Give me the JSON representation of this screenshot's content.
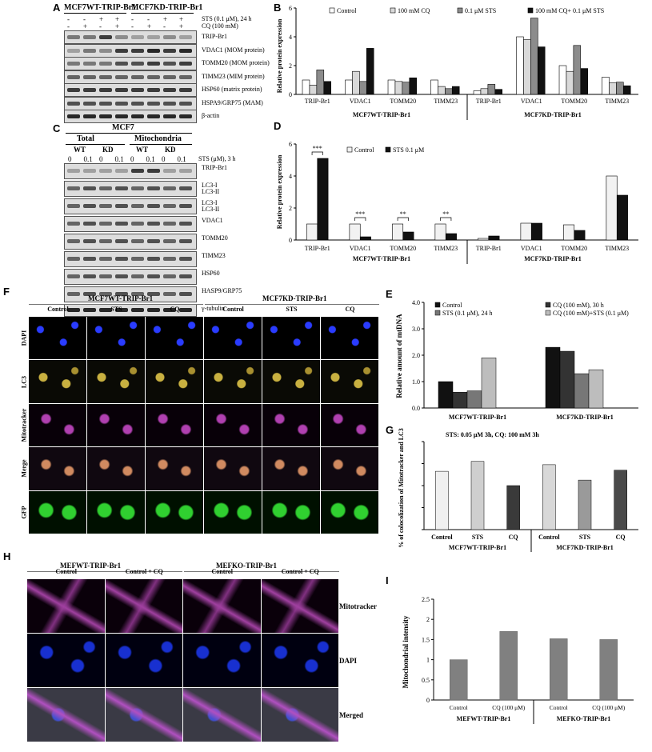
{
  "panel_letters": {
    "A": "A",
    "B": "B",
    "C": "C",
    "D": "D",
    "E": "E",
    "F": "F",
    "G": "G",
    "H": "H",
    "I": "I"
  },
  "A": {
    "group_wt": "MCF7WT-TRIP-Br1",
    "group_kd": "MCF7KD-TRIP-Br1",
    "cond1_label": "STS (0.1 μM), 24 h",
    "cond2_label": "CQ (100 mM)",
    "cond1": [
      "-",
      "-",
      "+",
      "+",
      "-",
      "-",
      "+",
      "+"
    ],
    "cond2": [
      "-",
      "+",
      "-",
      "+",
      "-",
      "+",
      "-",
      "+"
    ],
    "rows": [
      "TRIP-Br1",
      "VDAC1 (MOM protein)",
      "TOMM20 (MOM protein)",
      "TIMM23 (MIM protein)",
      "HSP60 (matrix protein)",
      "HSPA9/GRP75 (MAM)",
      "β-actin"
    ]
  },
  "C": {
    "title": "MCF7",
    "group_total": "Total",
    "group_mito": "Mitochondria",
    "sub": [
      "WT",
      "KD",
      "WT",
      "KD"
    ],
    "sts_label": "STS (μM), 3 h",
    "sts": [
      "0",
      "0.1",
      "0",
      "0.1",
      "0",
      "0.1",
      "0",
      "0.1"
    ],
    "rows": [
      "TRIP-Br1",
      "LC3-I\nLC3-II",
      "LC3-I\nLC3-II",
      "VDAC1",
      "TOMM20",
      "TIMM23",
      "HSP60",
      "HASP9/GRP75",
      "γ-tubulin"
    ]
  },
  "chart_data": [
    {
      "panel": "B",
      "type": "bar",
      "ylabel": "Relative protein expression",
      "ylim": [
        0,
        6
      ],
      "categories": [
        "TRIP-Br1",
        "VDAC1",
        "TOMM20",
        "TIMM23",
        "TRIP-Br1",
        "VDAC1",
        "TOMM20",
        "TIMM23"
      ],
      "groups": [
        "MCF7WT-TRIP-Br1",
        "MCF7KD-TRIP-Br1"
      ],
      "series": [
        {
          "name": "Control",
          "color": "#ffffff",
          "values": [
            1.0,
            1.0,
            1.0,
            1.0,
            0.25,
            4.0,
            2.0,
            1.2
          ]
        },
        {
          "name": "100 mM CQ",
          "color": "#d9d9d9",
          "values": [
            0.65,
            1.6,
            0.9,
            0.55,
            0.4,
            3.8,
            1.6,
            0.8
          ]
        },
        {
          "name": "0.1 μM STS",
          "color": "#8c8c8c",
          "values": [
            1.7,
            0.9,
            0.85,
            0.4,
            0.7,
            5.3,
            3.4,
            0.85
          ]
        },
        {
          "name": "100 mM CQ+ 0.1 μM  STS",
          "color": "#111111",
          "values": [
            0.9,
            3.2,
            1.15,
            0.55,
            0.35,
            3.3,
            1.8,
            0.6
          ]
        }
      ]
    },
    {
      "panel": "D",
      "type": "bar",
      "ylabel": "Relative protein expression",
      "ylim": [
        0,
        6
      ],
      "categories": [
        "TRIP-Br1",
        "VDAC1",
        "TOMM20",
        "TIMM23",
        "TRIP-Br1",
        "VDAC1",
        "TOMM20",
        "TIMM23"
      ],
      "groups": [
        "MCF7WT-TRIP-Br1",
        "MCF7KD-TRIP-Br1"
      ],
      "series": [
        {
          "name": "Control",
          "color": "#f2f2f2",
          "values": [
            1.0,
            1.0,
            1.0,
            1.0,
            0.1,
            1.05,
            0.95,
            4.0
          ]
        },
        {
          "name": "STS 0.1 μM",
          "color": "#111111",
          "values": [
            5.1,
            0.2,
            0.5,
            0.4,
            0.25,
            1.05,
            0.6,
            2.8
          ]
        }
      ],
      "significance": [
        "***",
        "***",
        "**",
        "**"
      ]
    },
    {
      "panel": "E",
      "type": "bar",
      "ylabel": "Relative amount of mtDNA",
      "ylim": [
        0,
        4
      ],
      "yticks": [
        "0.0",
        "1.0",
        "2.0",
        "3.0",
        "4.0"
      ],
      "categories": [
        "MCF7WT-TRIP-Br1",
        "MCF7KD-TRIP-Br1"
      ],
      "series": [
        {
          "name": "Control",
          "color": "#111111",
          "values": [
            1.0,
            2.3
          ]
        },
        {
          "name": "CQ (100 mM), 30 h",
          "color": "#333333",
          "values": [
            0.6,
            2.15
          ]
        },
        {
          "name": "STS (0.1 μM),  24 h",
          "color": "#777777",
          "values": [
            0.65,
            1.3
          ]
        },
        {
          "name": "CQ (100 mM)+STS  (0.1 μM)",
          "color": "#bdbdbd",
          "values": [
            1.9,
            1.45
          ]
        }
      ]
    },
    {
      "panel": "G",
      "type": "bar",
      "ylabel": "% of colocolization  of Mitotracker and LC3",
      "ylim": [
        0,
        8
      ],
      "title": "STS: 0.05 μM 3h,     CQ: 100 mM 3h",
      "categories": [
        "Control",
        "STS",
        "CQ",
        "Control",
        "STS",
        "CQ"
      ],
      "groups": [
        "MCF7WT-TRIP-Br1",
        "MCF7KD-TRIP-Br1"
      ],
      "values": [
        5.3,
        6.2,
        4.0,
        5.9,
        4.5,
        5.4
      ]
    },
    {
      "panel": "I",
      "type": "bar",
      "ylabel": "Mitochondrial  intensity",
      "ylim": [
        0,
        2.5
      ],
      "yticks": [
        "0",
        "0.5",
        "1",
        "1.5",
        "2",
        "2.5"
      ],
      "categories": [
        "Control",
        "CQ (100 μM)",
        "Control",
        "CQ (100 μM)"
      ],
      "groups": [
        "MEFWT-TRIP-Br1",
        "MEFKO-TRIP-Br1"
      ],
      "values": [
        1.0,
        1.7,
        1.52,
        1.5
      ]
    }
  ],
  "F": {
    "group_wt": "MCF7WT-TRIP-Br1",
    "group_kd": "MCF7KD-TRIP-Br1",
    "cols": [
      "Control",
      "STS",
      "CQ",
      "Control",
      "STS",
      "CQ"
    ],
    "rows": [
      "DAPI",
      "LC3",
      "Mitotracker",
      "Merge",
      "GFP"
    ]
  },
  "H": {
    "group_wt": "MEFWT-TRIP-Br1",
    "group_kd": "MEFKO-TRIP-Br1",
    "cols": [
      "Control",
      "Control + CQ",
      "Control",
      "Control + CQ"
    ],
    "rows": [
      "Mitotracker",
      "DAPI",
      "Merged"
    ]
  }
}
